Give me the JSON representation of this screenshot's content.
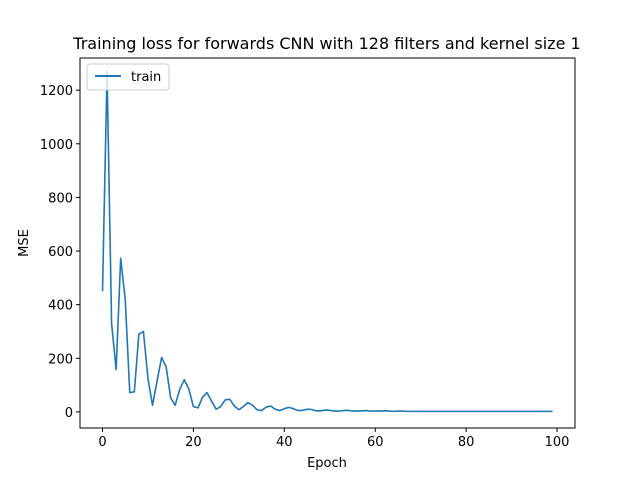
{
  "chart_data": {
    "type": "line",
    "title": "Training loss for forwards CNN with 128 filters and kernel size 1",
    "xlabel": "Epoch",
    "ylabel": "MSE",
    "xlim": [
      -4.95,
      103.95
    ],
    "ylim": [
      -60,
      1320
    ],
    "xticks": [
      0,
      20,
      40,
      60,
      80,
      100
    ],
    "yticks": [
      0,
      200,
      400,
      600,
      800,
      1000,
      1200
    ],
    "grid": false,
    "legend_position": "top-left",
    "series": [
      {
        "name": "train",
        "color": "#1f77b4",
        "x": [
          0,
          1,
          2,
          3,
          4,
          5,
          6,
          7,
          8,
          9,
          10,
          11,
          12,
          13,
          14,
          15,
          16,
          17,
          18,
          19,
          20,
          21,
          22,
          23,
          24,
          25,
          26,
          27,
          28,
          29,
          30,
          31,
          32,
          33,
          34,
          35,
          36,
          37,
          38,
          39,
          40,
          41,
          42,
          43,
          44,
          45,
          46,
          47,
          48,
          49,
          50,
          51,
          52,
          53,
          54,
          55,
          56,
          57,
          58,
          59,
          60,
          61,
          62,
          63,
          64,
          65,
          66,
          67,
          68,
          69,
          70,
          71,
          72,
          73,
          74,
          75,
          76,
          77,
          78,
          79,
          80,
          81,
          82,
          83,
          84,
          85,
          86,
          87,
          88,
          89,
          90,
          91,
          92,
          93,
          94,
          95,
          96,
          97,
          98,
          99
        ],
        "values": [
          450,
          1270,
          330,
          158,
          573,
          420,
          72,
          75,
          290,
          300,
          125,
          25,
          115,
          203,
          168,
          52,
          25,
          85,
          120,
          85,
          20,
          15,
          55,
          72,
          40,
          10,
          20,
          45,
          47,
          22,
          8,
          20,
          35,
          25,
          8,
          5,
          18,
          22,
          10,
          5,
          12,
          17,
          12,
          5,
          6,
          10,
          9,
          4,
          4,
          7,
          6,
          3,
          3,
          5,
          6,
          3,
          3,
          4,
          5,
          3,
          3,
          3,
          4,
          3,
          2,
          3,
          3,
          2,
          2,
          2,
          2,
          2,
          2,
          2,
          2,
          2,
          2,
          2,
          2,
          2,
          2,
          2,
          2,
          2,
          2,
          2,
          2,
          2,
          2,
          2,
          2,
          2,
          2,
          2,
          2,
          2,
          2,
          2,
          2,
          2
        ]
      }
    ]
  }
}
